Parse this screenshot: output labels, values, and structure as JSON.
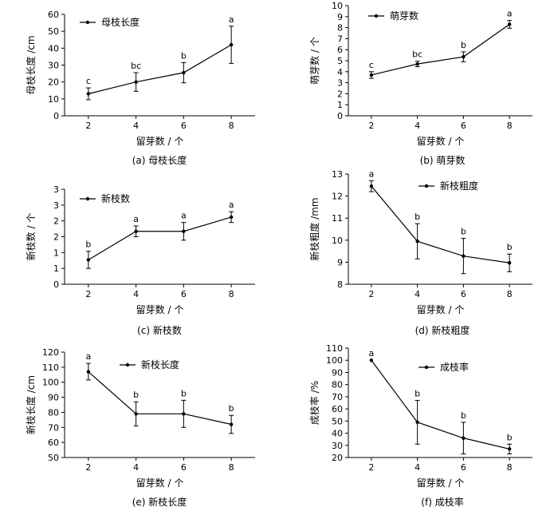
{
  "chart_data": [
    {
      "type": "line",
      "caption": "(a)  母枝长度",
      "xlabel": "留芽数 / 个",
      "ylabel": "母枝长度 /cm",
      "legend": "母枝长度",
      "x": [
        2,
        4,
        6,
        8
      ],
      "xticks": [
        "2",
        "4",
        "6",
        "8"
      ],
      "xlim": [
        1,
        9
      ],
      "ylim": [
        0,
        60
      ],
      "yticks": [
        0,
        10,
        20,
        30,
        40,
        50,
        60
      ],
      "ytick_labels": [
        "0",
        "10",
        "20",
        "30",
        "40",
        "50",
        "60"
      ],
      "series": [
        {
          "values": [
            13,
            20,
            25.5,
            42
          ],
          "errors": [
            3.5,
            5.5,
            6,
            11
          ],
          "letters": [
            "c",
            "bc",
            "b",
            "a"
          ]
        }
      ]
    },
    {
      "type": "line",
      "caption": "(b)  萌芽数",
      "xlabel": "留芽数 / 个",
      "ylabel": "萌芽数 / 个",
      "legend": "萌芽数",
      "x": [
        2,
        4,
        6,
        8
      ],
      "xticks": [
        "2",
        "4",
        "6",
        "8"
      ],
      "xlim": [
        1,
        9
      ],
      "ylim": [
        0,
        10
      ],
      "yticks": [
        0,
        1,
        2,
        3,
        4,
        5,
        6,
        7,
        8,
        9,
        10
      ],
      "ytick_labels": [
        "0",
        "1",
        "2",
        "3",
        "4",
        "5",
        "6",
        "7",
        "8",
        "9",
        "10"
      ],
      "series": [
        {
          "values": [
            3.7,
            4.7,
            5.35,
            8.3
          ],
          "errors": [
            0.3,
            0.25,
            0.45,
            0.35
          ],
          "letters": [
            "c",
            "bc",
            "b",
            "a"
          ]
        }
      ]
    },
    {
      "type": "line",
      "caption": "(c)  新枝数",
      "xlabel": "留芽数 / 个",
      "ylabel": "新枝数 / 个",
      "legend": "新枝数",
      "x": [
        2,
        4,
        6,
        8
      ],
      "xticks": [
        "2",
        "4",
        "6",
        "8"
      ],
      "xlim": [
        1,
        9
      ],
      "ylim": [
        0,
        3
      ],
      "yticks": [
        0,
        0.5,
        1,
        1.5,
        2,
        2.5,
        3
      ],
      "ytick_labels": [
        "0",
        "1",
        "1",
        "2",
        "2",
        "3",
        "3"
      ],
      "series": [
        {
          "values": [
            0.77,
            1.67,
            1.67,
            2.12
          ],
          "errors": [
            0.27,
            0.17,
            0.28,
            0.17
          ],
          "letters": [
            "b",
            "a",
            "a",
            "a"
          ]
        }
      ]
    },
    {
      "type": "line",
      "caption": "(d)  新枝粗度",
      "xlabel": "留芽数 / 个",
      "ylabel": "新枝粗度 /mm",
      "legend": "新枝粗度",
      "x": [
        2,
        4,
        6,
        8
      ],
      "xticks": [
        "2",
        "4",
        "6",
        "8"
      ],
      "xlim": [
        1,
        9
      ],
      "ylim": [
        8,
        13
      ],
      "yticks": [
        8,
        9,
        10,
        11,
        12,
        13
      ],
      "ytick_labels": [
        "8",
        "9",
        "10",
        "11",
        "12",
        "13"
      ],
      "series": [
        {
          "values": [
            12.45,
            9.95,
            9.28,
            8.97
          ],
          "errors": [
            0.25,
            0.8,
            0.8,
            0.4
          ],
          "letters": [
            "a",
            "b",
            "b",
            "b"
          ]
        }
      ]
    },
    {
      "type": "line",
      "caption": "(e)  新枝长度",
      "xlabel": "留芽数 / 个",
      "ylabel": "新枝长度 /cm",
      "legend": "新枝长度",
      "x": [
        2,
        4,
        6,
        8
      ],
      "xticks": [
        "2",
        "4",
        "6",
        "8"
      ],
      "xlim": [
        1,
        9
      ],
      "ylim": [
        50,
        120
      ],
      "yticks": [
        50,
        60,
        70,
        80,
        90,
        100,
        110,
        120
      ],
      "ytick_labels": [
        "50",
        "60",
        "70",
        "80",
        "90",
        "100",
        "110",
        "120"
      ],
      "series": [
        {
          "values": [
            107,
            79,
            79,
            72
          ],
          "errors": [
            5.5,
            8,
            9,
            6
          ],
          "letters": [
            "a",
            "b",
            "b",
            "b"
          ]
        }
      ]
    },
    {
      "type": "line",
      "caption": "(f)  成枝率",
      "xlabel": "留芽数 / 个",
      "ylabel": "成枝率 /%",
      "legend": "成枝率",
      "x": [
        2,
        4,
        6,
        8
      ],
      "xticks": [
        "2",
        "4",
        "6",
        "8"
      ],
      "xlim": [
        1,
        9
      ],
      "ylim": [
        20,
        110
      ],
      "yticks": [
        20,
        30,
        40,
        50,
        60,
        70,
        80,
        90,
        100,
        110
      ],
      "ytick_labels": [
        "20",
        "30",
        "40",
        "50",
        "60",
        "70",
        "80",
        "90",
        "100",
        "110"
      ],
      "series": [
        {
          "values": [
            100,
            49,
            36,
            27
          ],
          "errors": [
            0,
            18,
            13,
            4
          ],
          "letters": [
            "a",
            "b",
            "b",
            "b"
          ]
        }
      ]
    }
  ]
}
